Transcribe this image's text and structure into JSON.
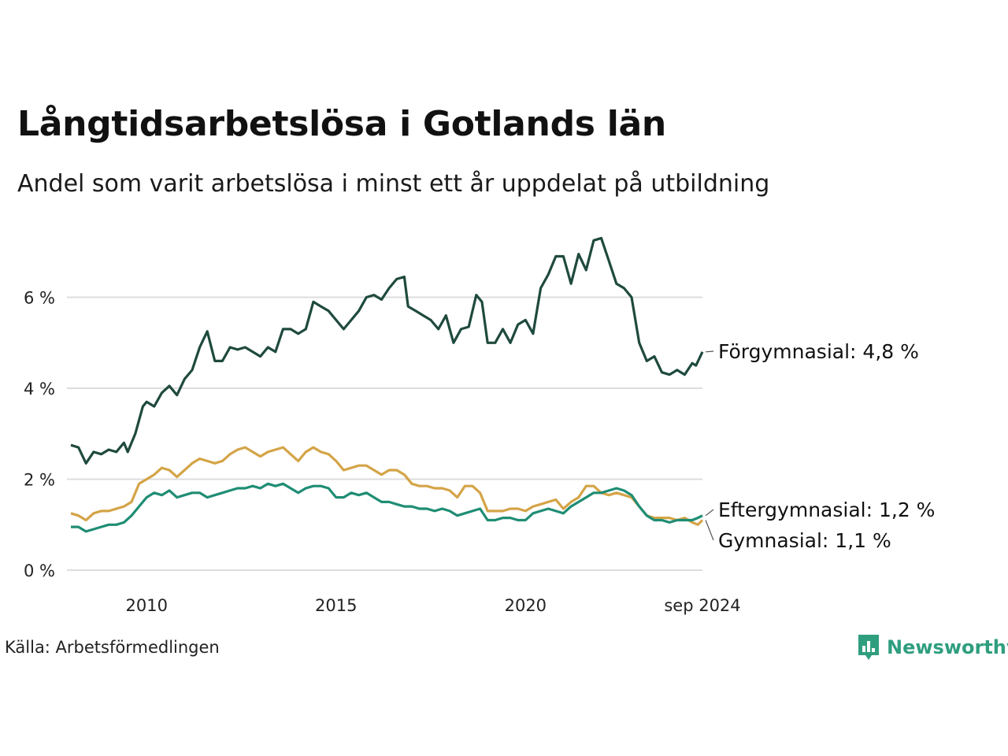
{
  "colors": {
    "forgymnasial": "#1f4a3e",
    "gymnasial": "#d4a447",
    "eftergymnasial": "#1f8d74",
    "grid": "#dddddd",
    "brand": "#2f9e7f"
  },
  "footer": {
    "source": "Källa: Arbetsförmedlingen",
    "brand": "Newsworthy",
    "brand_icon": "bar-chart-badge-icon"
  },
  "chart_data": {
    "type": "line",
    "title": "Långtidsarbetslösa i Gotlands län",
    "subtitle": "Andel som varit arbetslösa i minst ett år uppdelat på utbildning",
    "xlabel": "",
    "ylabel": "",
    "x_range": [
      2008.0,
      2024.67
    ],
    "ylim": [
      0,
      7.5
    ],
    "y_ticks": [
      0,
      2,
      4,
      6
    ],
    "y_tick_labels": [
      "0 %",
      "2 %",
      "4 %",
      "6 %"
    ],
    "x_ticks": [
      2010,
      2015,
      2020,
      2024.67
    ],
    "x_tick_labels": [
      "2010",
      "2015",
      "2020",
      "sep 2024"
    ],
    "grid": true,
    "legend": "inline labels at line ends (right)",
    "series": [
      {
        "name": "Förgymnasial",
        "end_label": "Förgymnasial: 4,8 %",
        "color_key": "forgymnasial",
        "points": [
          [
            2008.0,
            2.75
          ],
          [
            2008.2,
            2.7
          ],
          [
            2008.4,
            2.35
          ],
          [
            2008.6,
            2.6
          ],
          [
            2008.8,
            2.55
          ],
          [
            2009.0,
            2.65
          ],
          [
            2009.2,
            2.6
          ],
          [
            2009.4,
            2.8
          ],
          [
            2009.5,
            2.6
          ],
          [
            2009.7,
            3.0
          ],
          [
            2009.9,
            3.6
          ],
          [
            2010.0,
            3.7
          ],
          [
            2010.2,
            3.6
          ],
          [
            2010.4,
            3.9
          ],
          [
            2010.6,
            4.05
          ],
          [
            2010.8,
            3.85
          ],
          [
            2011.0,
            4.2
          ],
          [
            2011.2,
            4.4
          ],
          [
            2011.4,
            4.9
          ],
          [
            2011.6,
            5.25
          ],
          [
            2011.8,
            4.6
          ],
          [
            2012.0,
            4.6
          ],
          [
            2012.2,
            4.9
          ],
          [
            2012.4,
            4.85
          ],
          [
            2012.6,
            4.9
          ],
          [
            2012.8,
            4.8
          ],
          [
            2013.0,
            4.7
          ],
          [
            2013.2,
            4.9
          ],
          [
            2013.4,
            4.8
          ],
          [
            2013.6,
            5.3
          ],
          [
            2013.8,
            5.3
          ],
          [
            2014.0,
            5.2
          ],
          [
            2014.2,
            5.3
          ],
          [
            2014.4,
            5.9
          ],
          [
            2014.6,
            5.8
          ],
          [
            2014.8,
            5.7
          ],
          [
            2015.0,
            5.5
          ],
          [
            2015.2,
            5.3
          ],
          [
            2015.4,
            5.5
          ],
          [
            2015.6,
            5.7
          ],
          [
            2015.8,
            6.0
          ],
          [
            2016.0,
            6.05
          ],
          [
            2016.2,
            5.95
          ],
          [
            2016.4,
            6.2
          ],
          [
            2016.6,
            6.4
          ],
          [
            2016.8,
            6.45
          ],
          [
            2016.9,
            5.8
          ],
          [
            2017.1,
            5.7
          ],
          [
            2017.3,
            5.6
          ],
          [
            2017.5,
            5.5
          ],
          [
            2017.7,
            5.3
          ],
          [
            2017.9,
            5.6
          ],
          [
            2018.1,
            5.0
          ],
          [
            2018.3,
            5.3
          ],
          [
            2018.5,
            5.35
          ],
          [
            2018.7,
            6.05
          ],
          [
            2018.85,
            5.9
          ],
          [
            2019.0,
            5.0
          ],
          [
            2019.2,
            5.0
          ],
          [
            2019.4,
            5.3
          ],
          [
            2019.6,
            5.0
          ],
          [
            2019.8,
            5.4
          ],
          [
            2020.0,
            5.5
          ],
          [
            2020.2,
            5.2
          ],
          [
            2020.4,
            6.2
          ],
          [
            2020.6,
            6.5
          ],
          [
            2020.8,
            6.9
          ],
          [
            2021.0,
            6.9
          ],
          [
            2021.2,
            6.3
          ],
          [
            2021.4,
            6.95
          ],
          [
            2021.6,
            6.6
          ],
          [
            2021.8,
            7.25
          ],
          [
            2022.0,
            7.3
          ],
          [
            2022.2,
            6.8
          ],
          [
            2022.4,
            6.3
          ],
          [
            2022.6,
            6.2
          ],
          [
            2022.8,
            6.0
          ],
          [
            2023.0,
            5.0
          ],
          [
            2023.2,
            4.6
          ],
          [
            2023.4,
            4.7
          ],
          [
            2023.6,
            4.35
          ],
          [
            2023.8,
            4.3
          ],
          [
            2024.0,
            4.4
          ],
          [
            2024.2,
            4.3
          ],
          [
            2024.4,
            4.55
          ],
          [
            2024.5,
            4.5
          ],
          [
            2024.67,
            4.8
          ]
        ]
      },
      {
        "name": "Gymnasial",
        "end_label": "Gymnasial: 1,1 %",
        "color_key": "gymnasial",
        "points": [
          [
            2008.0,
            1.25
          ],
          [
            2008.2,
            1.2
          ],
          [
            2008.4,
            1.1
          ],
          [
            2008.6,
            1.25
          ],
          [
            2008.8,
            1.3
          ],
          [
            2009.0,
            1.3
          ],
          [
            2009.2,
            1.35
          ],
          [
            2009.4,
            1.4
          ],
          [
            2009.6,
            1.5
          ],
          [
            2009.8,
            1.9
          ],
          [
            2010.0,
            2.0
          ],
          [
            2010.2,
            2.1
          ],
          [
            2010.4,
            2.25
          ],
          [
            2010.6,
            2.2
          ],
          [
            2010.8,
            2.05
          ],
          [
            2011.0,
            2.2
          ],
          [
            2011.2,
            2.35
          ],
          [
            2011.4,
            2.45
          ],
          [
            2011.6,
            2.4
          ],
          [
            2011.8,
            2.35
          ],
          [
            2012.0,
            2.4
          ],
          [
            2012.2,
            2.55
          ],
          [
            2012.4,
            2.65
          ],
          [
            2012.6,
            2.7
          ],
          [
            2012.8,
            2.6
          ],
          [
            2013.0,
            2.5
          ],
          [
            2013.2,
            2.6
          ],
          [
            2013.4,
            2.65
          ],
          [
            2013.6,
            2.7
          ],
          [
            2013.8,
            2.55
          ],
          [
            2014.0,
            2.4
          ],
          [
            2014.2,
            2.6
          ],
          [
            2014.4,
            2.7
          ],
          [
            2014.6,
            2.6
          ],
          [
            2014.8,
            2.55
          ],
          [
            2015.0,
            2.4
          ],
          [
            2015.2,
            2.2
          ],
          [
            2015.4,
            2.25
          ],
          [
            2015.6,
            2.3
          ],
          [
            2015.8,
            2.3
          ],
          [
            2016.0,
            2.2
          ],
          [
            2016.2,
            2.1
          ],
          [
            2016.4,
            2.2
          ],
          [
            2016.6,
            2.2
          ],
          [
            2016.8,
            2.1
          ],
          [
            2017.0,
            1.9
          ],
          [
            2017.2,
            1.85
          ],
          [
            2017.4,
            1.85
          ],
          [
            2017.6,
            1.8
          ],
          [
            2017.8,
            1.8
          ],
          [
            2018.0,
            1.75
          ],
          [
            2018.2,
            1.6
          ],
          [
            2018.4,
            1.85
          ],
          [
            2018.6,
            1.85
          ],
          [
            2018.8,
            1.7
          ],
          [
            2019.0,
            1.3
          ],
          [
            2019.2,
            1.3
          ],
          [
            2019.4,
            1.3
          ],
          [
            2019.6,
            1.35
          ],
          [
            2019.8,
            1.35
          ],
          [
            2020.0,
            1.3
          ],
          [
            2020.2,
            1.4
          ],
          [
            2020.4,
            1.45
          ],
          [
            2020.6,
            1.5
          ],
          [
            2020.8,
            1.55
          ],
          [
            2021.0,
            1.35
          ],
          [
            2021.2,
            1.5
          ],
          [
            2021.4,
            1.6
          ],
          [
            2021.6,
            1.85
          ],
          [
            2021.8,
            1.85
          ],
          [
            2022.0,
            1.7
          ],
          [
            2022.2,
            1.65
          ],
          [
            2022.4,
            1.7
          ],
          [
            2022.6,
            1.65
          ],
          [
            2022.8,
            1.6
          ],
          [
            2023.0,
            1.4
          ],
          [
            2023.2,
            1.2
          ],
          [
            2023.4,
            1.15
          ],
          [
            2023.6,
            1.15
          ],
          [
            2023.8,
            1.15
          ],
          [
            2024.0,
            1.1
          ],
          [
            2024.2,
            1.15
          ],
          [
            2024.4,
            1.05
          ],
          [
            2024.55,
            1.0
          ],
          [
            2024.67,
            1.1
          ]
        ]
      },
      {
        "name": "Eftergymnasial",
        "end_label": "Eftergymnasial: 1,2 %",
        "color_key": "eftergymnasial",
        "points": [
          [
            2008.0,
            0.95
          ],
          [
            2008.2,
            0.95
          ],
          [
            2008.4,
            0.85
          ],
          [
            2008.6,
            0.9
          ],
          [
            2008.8,
            0.95
          ],
          [
            2009.0,
            1.0
          ],
          [
            2009.2,
            1.0
          ],
          [
            2009.4,
            1.05
          ],
          [
            2009.6,
            1.2
          ],
          [
            2009.8,
            1.4
          ],
          [
            2010.0,
            1.6
          ],
          [
            2010.2,
            1.7
          ],
          [
            2010.4,
            1.65
          ],
          [
            2010.6,
            1.75
          ],
          [
            2010.8,
            1.6
          ],
          [
            2011.0,
            1.65
          ],
          [
            2011.2,
            1.7
          ],
          [
            2011.4,
            1.7
          ],
          [
            2011.6,
            1.6
          ],
          [
            2011.8,
            1.65
          ],
          [
            2012.0,
            1.7
          ],
          [
            2012.2,
            1.75
          ],
          [
            2012.4,
            1.8
          ],
          [
            2012.6,
            1.8
          ],
          [
            2012.8,
            1.85
          ],
          [
            2013.0,
            1.8
          ],
          [
            2013.2,
            1.9
          ],
          [
            2013.4,
            1.85
          ],
          [
            2013.6,
            1.9
          ],
          [
            2013.8,
            1.8
          ],
          [
            2014.0,
            1.7
          ],
          [
            2014.2,
            1.8
          ],
          [
            2014.4,
            1.85
          ],
          [
            2014.6,
            1.85
          ],
          [
            2014.8,
            1.8
          ],
          [
            2015.0,
            1.6
          ],
          [
            2015.2,
            1.6
          ],
          [
            2015.4,
            1.7
          ],
          [
            2015.6,
            1.65
          ],
          [
            2015.8,
            1.7
          ],
          [
            2016.0,
            1.6
          ],
          [
            2016.2,
            1.5
          ],
          [
            2016.4,
            1.5
          ],
          [
            2016.6,
            1.45
          ],
          [
            2016.8,
            1.4
          ],
          [
            2017.0,
            1.4
          ],
          [
            2017.2,
            1.35
          ],
          [
            2017.4,
            1.35
          ],
          [
            2017.6,
            1.3
          ],
          [
            2017.8,
            1.35
          ],
          [
            2018.0,
            1.3
          ],
          [
            2018.2,
            1.2
          ],
          [
            2018.4,
            1.25
          ],
          [
            2018.6,
            1.3
          ],
          [
            2018.8,
            1.35
          ],
          [
            2019.0,
            1.1
          ],
          [
            2019.2,
            1.1
          ],
          [
            2019.4,
            1.15
          ],
          [
            2019.6,
            1.15
          ],
          [
            2019.8,
            1.1
          ],
          [
            2020.0,
            1.1
          ],
          [
            2020.2,
            1.25
          ],
          [
            2020.4,
            1.3
          ],
          [
            2020.6,
            1.35
          ],
          [
            2020.8,
            1.3
          ],
          [
            2021.0,
            1.25
          ],
          [
            2021.2,
            1.4
          ],
          [
            2021.4,
            1.5
          ],
          [
            2021.6,
            1.6
          ],
          [
            2021.8,
            1.7
          ],
          [
            2022.0,
            1.7
          ],
          [
            2022.2,
            1.75
          ],
          [
            2022.4,
            1.8
          ],
          [
            2022.6,
            1.75
          ],
          [
            2022.8,
            1.65
          ],
          [
            2023.0,
            1.4
          ],
          [
            2023.2,
            1.2
          ],
          [
            2023.4,
            1.1
          ],
          [
            2023.6,
            1.1
          ],
          [
            2023.8,
            1.05
          ],
          [
            2024.0,
            1.1
          ],
          [
            2024.2,
            1.1
          ],
          [
            2024.4,
            1.1
          ],
          [
            2024.55,
            1.15
          ],
          [
            2024.67,
            1.2
          ]
        ]
      }
    ]
  }
}
